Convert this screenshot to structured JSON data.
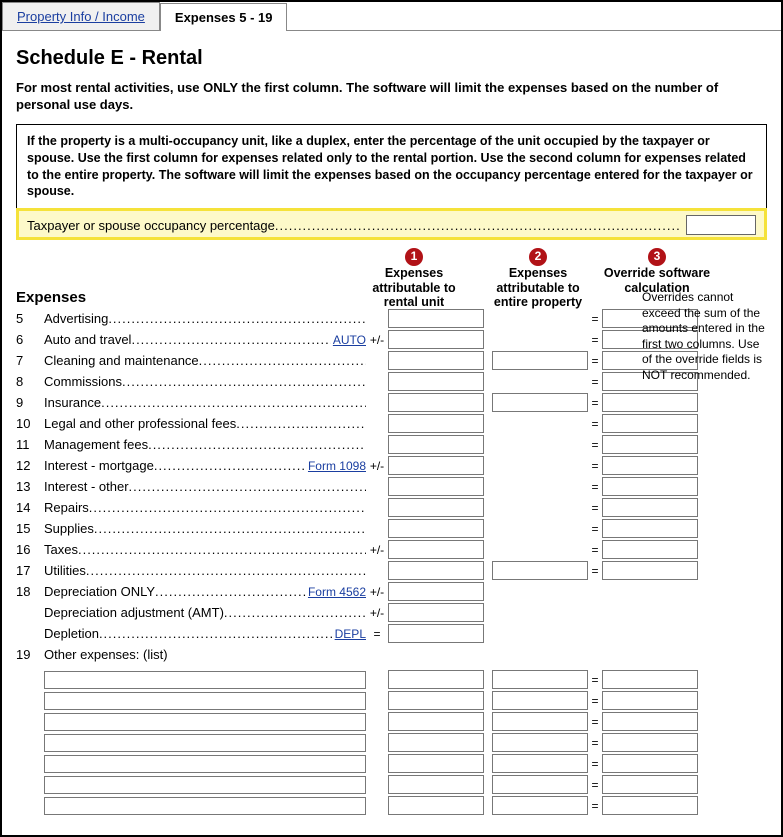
{
  "tabs": {
    "t0": "Property Info / Income",
    "t1": "Expenses 5 - 19"
  },
  "title": "Schedule E - Rental",
  "intro": "For most rental activities, use ONLY the first column. The software will limit the expenses based on the number of personal use days.",
  "note": "If the property is a multi-occupancy unit, like a duplex, enter the percentage of the unit occupied by the taxpayer or spouse. Use the first column for expenses related only to the rental portion. Use the second column for expenses related to the entire property. The software will limit the expenses based on the occupancy percentage entered for the taxpayer or spouse.",
  "occupancy_label": "Taxpayer or spouse occupancy percentage",
  "badges": {
    "b1": "1",
    "b2": "2",
    "b3": "3"
  },
  "col_headers": {
    "c1": "Expenses attributable to rental unit",
    "c2": "Expenses attributable to entire property",
    "c3": "Override software calculation"
  },
  "expenses_label": "Expenses",
  "sidenote": "Overrides cannot exceed the sum of the amounts entered in the first two columns. Use of the override fields is NOT recommended.",
  "rows": {
    "r5": {
      "n": "5",
      "label": "Advertising",
      "op": "",
      "link": "",
      "c2": false,
      "eq": "=",
      "c3": true
    },
    "r6": {
      "n": "6",
      "label": "Auto and travel",
      "op": "+/-",
      "link": "AUTO",
      "c2": false,
      "eq": "=",
      "c3": true
    },
    "r7": {
      "n": "7",
      "label": "Cleaning and maintenance",
      "op": "",
      "link": "",
      "c2": true,
      "eq": "=",
      "c3": true
    },
    "r8": {
      "n": "8",
      "label": "Commissions",
      "op": "",
      "link": "",
      "c2": false,
      "eq": "=",
      "c3": true
    },
    "r9": {
      "n": "9",
      "label": "Insurance",
      "op": "",
      "link": "",
      "c2": true,
      "eq": "=",
      "c3": true
    },
    "r10": {
      "n": "10",
      "label": "Legal and other professional fees",
      "op": "",
      "link": "",
      "c2": false,
      "eq": "=",
      "c3": true
    },
    "r11": {
      "n": "11",
      "label": "Management fees",
      "op": "",
      "link": "",
      "c2": false,
      "eq": "=",
      "c3": true
    },
    "r12": {
      "n": "12",
      "label": "Interest - mortgage",
      "op": "+/-",
      "link": "Form 1098",
      "c2": false,
      "eq": "=",
      "c3": true
    },
    "r13": {
      "n": "13",
      "label": "Interest - other",
      "op": "",
      "link": "",
      "c2": false,
      "eq": "=",
      "c3": true
    },
    "r14": {
      "n": "14",
      "label": "Repairs",
      "op": "",
      "link": "",
      "c2": false,
      "eq": "=",
      "c3": true
    },
    "r15": {
      "n": "15",
      "label": "Supplies",
      "op": "",
      "link": "",
      "c2": false,
      "eq": "=",
      "c3": true
    },
    "r16": {
      "n": "16",
      "label": "Taxes",
      "op": "+/-",
      "link": "",
      "c2": false,
      "eq": "=",
      "c3": true
    },
    "r17": {
      "n": "17",
      "label": "Utilities",
      "op": "",
      "link": "",
      "c2": true,
      "eq": "=",
      "c3": true
    },
    "r18": {
      "n": "18",
      "label": "Depreciation ONLY",
      "op": "+/-",
      "link": "Form 4562",
      "c2": false,
      "eq": "",
      "c3": false
    },
    "r18a": {
      "n": "",
      "label": "Depreciation adjustment (AMT)",
      "op": "+/-",
      "link": "",
      "c2": false,
      "eq": "",
      "c3": false
    },
    "r18b": {
      "n": "",
      "label": "Depletion",
      "op": "=",
      "link": "DEPL",
      "c2": false,
      "eq": "",
      "c3": false
    },
    "r19": {
      "n": "19",
      "label": "Other expenses: (list)"
    }
  },
  "other_count": 7
}
